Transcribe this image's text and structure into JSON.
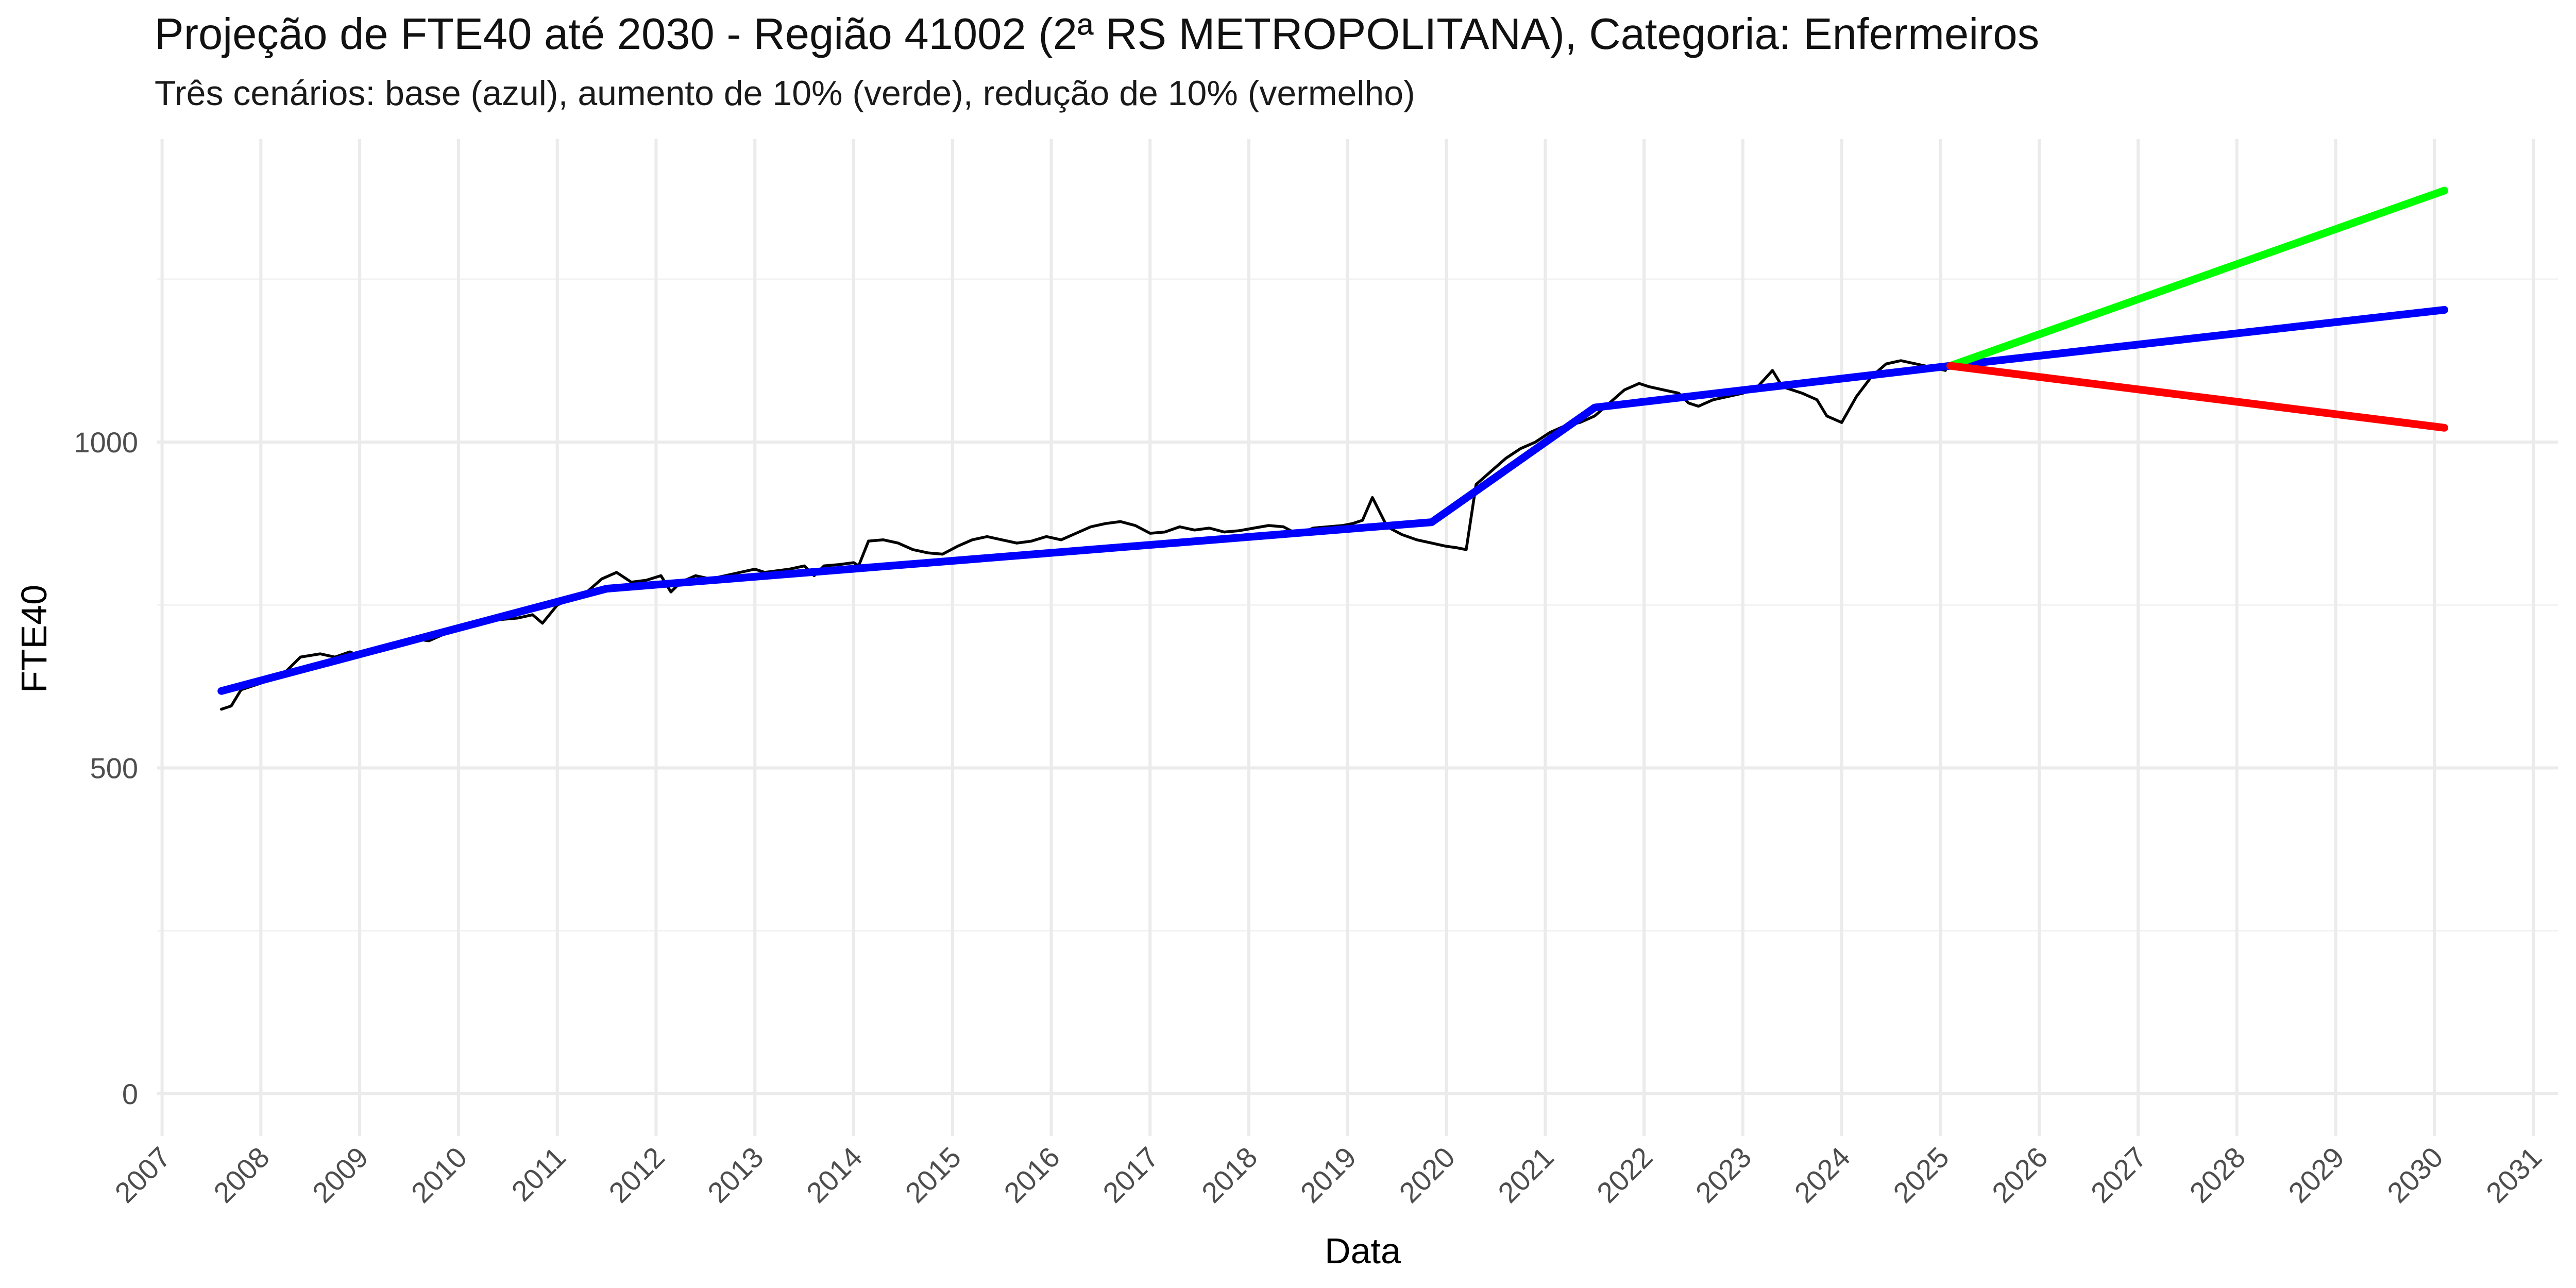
{
  "chart_data": {
    "type": "line",
    "title": "Projeção de FTE40 até 2030 - Região 41002 (2ª RS METROPOLITANA), Categoria: Enfermeiros",
    "subtitle": "Três cenários: base (azul), aumento de 10% (verde), redução de 10% (vermelho)",
    "xlabel": "Data",
    "ylabel": "FTE40",
    "xlim": [
      2006.95,
      2031.25
    ],
    "ylim": [
      -65,
      1465
    ],
    "x_ticks": [
      2007,
      2008,
      2009,
      2010,
      2011,
      2012,
      2013,
      2014,
      2015,
      2016,
      2017,
      2018,
      2019,
      2020,
      2021,
      2022,
      2023,
      2024,
      2025,
      2026,
      2027,
      2028,
      2029,
      2030,
      2031
    ],
    "x_tick_labels": [
      "2007",
      "2008",
      "2009",
      "2010",
      "2011",
      "2012",
      "2013",
      "2014",
      "2015",
      "2016",
      "2017",
      "2018",
      "2019",
      "2020",
      "2021",
      "2022",
      "2023",
      "2024",
      "2025",
      "2026",
      "2027",
      "2028",
      "2029",
      "2030",
      "2031"
    ],
    "y_ticks": [
      0,
      500,
      1000
    ],
    "y_tick_labels": [
      "0",
      "500",
      "1000"
    ],
    "grid": true,
    "legend": "none",
    "series": [
      {
        "color": "#000000",
        "x": [
          2007.6,
          2007.7,
          2007.8,
          2007.9,
          2008.0,
          2008.2,
          2008.4,
          2008.6,
          2008.75,
          2008.9,
          2009.0,
          2009.2,
          2009.4,
          2009.55,
          2009.7,
          2009.85,
          2010.0,
          2010.15,
          2010.3,
          2010.45,
          2010.6,
          2010.75,
          2010.85,
          2011.0,
          2011.15,
          2011.3,
          2011.45,
          2011.6,
          2011.75,
          2011.9,
          2012.05,
          2012.15,
          2012.25,
          2012.4,
          2012.55,
          2012.7,
          2012.85,
          2013.0,
          2013.1,
          2013.2,
          2013.35,
          2013.5,
          2013.6,
          2013.7,
          2013.85,
          2014.0,
          2014.05,
          2014.15,
          2014.3,
          2014.45,
          2014.6,
          2014.75,
          2014.9,
          2015.05,
          2015.2,
          2015.35,
          2015.5,
          2015.65,
          2015.8,
          2015.95,
          2016.1,
          2016.25,
          2016.4,
          2016.55,
          2016.7,
          2016.85,
          2017.0,
          2017.15,
          2017.3,
          2017.45,
          2017.6,
          2017.75,
          2017.9,
          2018.05,
          2018.2,
          2018.35,
          2018.5,
          2018.65,
          2018.8,
          2018.95,
          2019.05,
          2019.15,
          2019.25,
          2019.4,
          2019.55,
          2019.7,
          2019.85,
          2020.0,
          2020.1,
          2020.2,
          2020.3,
          2020.45,
          2020.6,
          2020.75,
          2020.9,
          2021.05,
          2021.2,
          2021.35,
          2021.5,
          2021.65,
          2021.8,
          2021.95,
          2022.05,
          2022.2,
          2022.35,
          2022.45,
          2022.55,
          2022.7,
          2022.85,
          2023.0,
          2023.15,
          2023.3,
          2023.4,
          2023.5,
          2023.6,
          2023.75,
          2023.85,
          2024.0,
          2024.15,
          2024.3,
          2024.45,
          2024.6,
          2024.75,
          2024.9,
          2025.05
        ],
        "y": [
          590,
          595,
          620,
          625,
          630,
          640,
          670,
          675,
          670,
          678,
          672,
          685,
          690,
          698,
          695,
          705,
          715,
          720,
          725,
          728,
          730,
          735,
          722,
          750,
          760,
          770,
          790,
          800,
          785,
          788,
          795,
          770,
          785,
          795,
          790,
          795,
          800,
          805,
          800,
          802,
          805,
          810,
          795,
          810,
          812,
          815,
          810,
          848,
          850,
          845,
          835,
          830,
          828,
          840,
          850,
          855,
          850,
          845,
          848,
          855,
          850,
          860,
          870,
          875,
          878,
          872,
          860,
          862,
          870,
          865,
          868,
          862,
          864,
          868,
          872,
          870,
          858,
          868,
          870,
          872,
          875,
          880,
          915,
          870,
          858,
          850,
          845,
          840,
          838,
          835,
          935,
          955,
          975,
          990,
          1000,
          1015,
          1025,
          1030,
          1040,
          1060,
          1080,
          1090,
          1085,
          1080,
          1075,
          1060,
          1055,
          1065,
          1070,
          1075,
          1085,
          1110,
          1085,
          1080,
          1075,
          1065,
          1040,
          1030,
          1070,
          1100,
          1120,
          1125,
          1120,
          1115,
          1110
        ]
      },
      {
        "color": "#0000ff",
        "x": [
          2007.6,
          2011.5,
          2019.85,
          2021.5,
          2025.1,
          2030.1
        ],
        "y": [
          618,
          775,
          877,
          1053,
          1117,
          1203
        ]
      },
      {
        "color": "#00ff00",
        "x": [
          2025.1,
          2030.1
        ],
        "y": [
          1117,
          1386
        ]
      },
      {
        "color": "#ff0000",
        "x": [
          2025.1,
          2030.1
        ],
        "y": [
          1117,
          1022
        ]
      }
    ]
  }
}
